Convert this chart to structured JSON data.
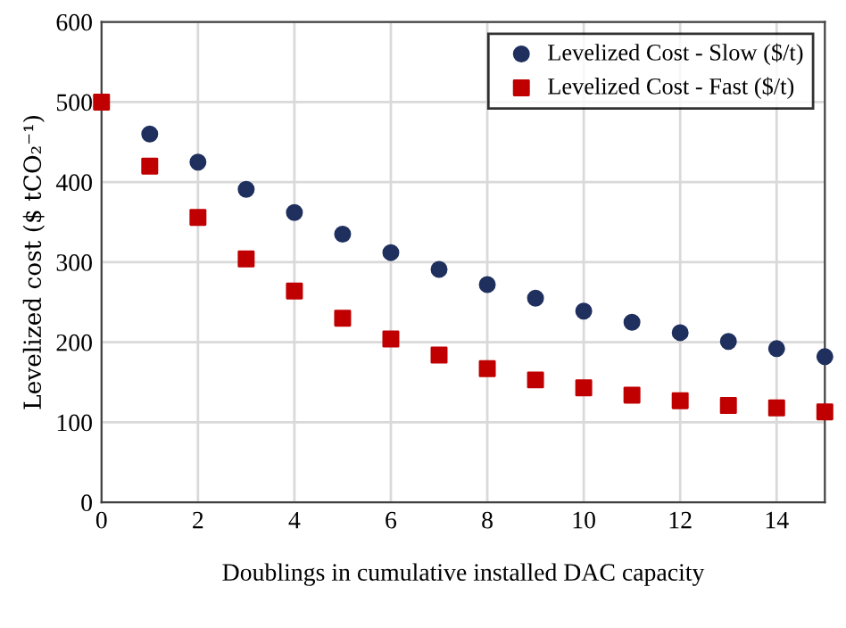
{
  "chart_data": {
    "type": "scatter",
    "xlabel": "Doublings in cumulative installed DAC capacity",
    "ylabel": "Levelized cost ($ tCO₂⁻¹)",
    "x": [
      0,
      1,
      2,
      3,
      4,
      5,
      6,
      7,
      8,
      9,
      10,
      11,
      12,
      13,
      14,
      15
    ],
    "series": [
      {
        "name": "Levelized Cost - Slow ($/t)",
        "color": "#1f2f5e",
        "marker": "circle",
        "values": [
          null,
          460,
          425,
          391,
          362,
          335,
          312,
          291,
          272,
          255,
          239,
          225,
          212,
          201,
          192,
          182
        ]
      },
      {
        "name": "Levelized Cost - Fast ($/t)",
        "color": "#c00000",
        "marker": "square",
        "values": [
          500,
          420,
          356,
          304,
          264,
          230,
          204,
          184,
          167,
          153,
          143,
          134,
          127,
          121,
          118,
          113
        ]
      }
    ],
    "xlim": [
      0,
      15
    ],
    "xticks": [
      0,
      2,
      4,
      6,
      8,
      10,
      12,
      14
    ],
    "ylim": [
      0,
      600
    ],
    "yticks": [
      0,
      100,
      200,
      300,
      400,
      500,
      600
    ],
    "grid": true,
    "legend": "top right"
  }
}
